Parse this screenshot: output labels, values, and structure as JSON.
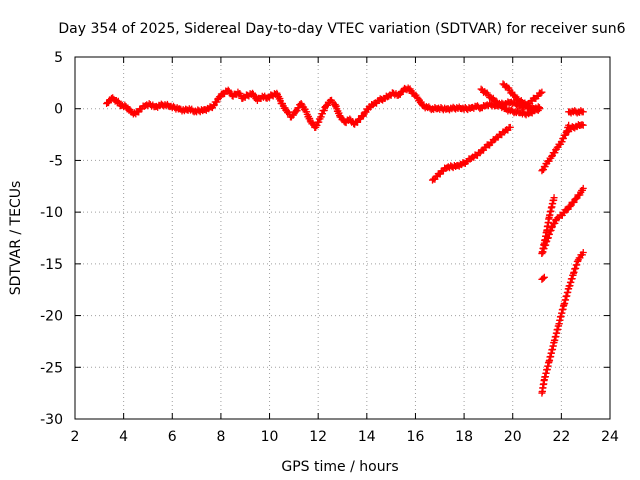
{
  "chart_data": {
    "type": "scatter",
    "title": "Day 354 of 2025, Sidereal Day-to-day VTEC variation (SDTVAR) for receiver sun6",
    "xlabel": "GPS time / hours",
    "ylabel": "SDTVAR / TECUs",
    "xlim": [
      2,
      24
    ],
    "ylim": [
      -30,
      5
    ],
    "x_ticks": [
      2,
      4,
      6,
      8,
      10,
      12,
      14,
      16,
      18,
      20,
      22,
      24
    ],
    "y_ticks": [
      5,
      0,
      -5,
      -10,
      -15,
      -20,
      -25,
      -30
    ],
    "grid": true,
    "marker": "plus",
    "color": "#ff0000",
    "series": [
      {
        "name": "main-track",
        "x": [
          3.3,
          3.5,
          3.7,
          3.9,
          4.1,
          4.3,
          4.5,
          4.7,
          4.9,
          5.1,
          5.3,
          5.5,
          5.7,
          5.9,
          6.1,
          6.3,
          6.5,
          6.7,
          6.9,
          7.1,
          7.3,
          7.5,
          7.7,
          7.9,
          8.1,
          8.3,
          8.5,
          8.7,
          8.9,
          9.1,
          9.3,
          9.5,
          9.7,
          9.9,
          10.1,
          10.3,
          10.5,
          10.7,
          10.9,
          11.1,
          11.3,
          11.5,
          11.7,
          11.9,
          12.1,
          12.3,
          12.5,
          12.7,
          12.9,
          13.1,
          13.3,
          13.5,
          13.7,
          13.9,
          14.1,
          14.3,
          14.5,
          14.7,
          14.9,
          15.1,
          15.3,
          15.5,
          15.7,
          15.9,
          16.1,
          16.3,
          16.5,
          16.7,
          16.9,
          17.1,
          17.3,
          17.5,
          17.7,
          17.9,
          18.1,
          18.3,
          18.5,
          18.7,
          18.9,
          19.1,
          19.3,
          19.5,
          19.7,
          19.9,
          20.1,
          20.3,
          20.5,
          20.7,
          20.9,
          21.1
        ],
        "y": [
          0.5,
          1.0,
          0.8,
          0.3,
          0.2,
          -0.3,
          -0.5,
          0.0,
          0.3,
          0.4,
          0.2,
          0.3,
          0.4,
          0.2,
          0.1,
          0.0,
          -0.2,
          0.0,
          -0.3,
          -0.2,
          -0.1,
          0.0,
          0.3,
          1.0,
          1.5,
          1.8,
          1.2,
          1.6,
          1.0,
          1.3,
          1.5,
          0.8,
          1.2,
          1.0,
          1.3,
          1.5,
          0.5,
          -0.2,
          -0.8,
          -0.2,
          0.5,
          -0.3,
          -1.3,
          -1.8,
          -0.8,
          0.2,
          0.8,
          0.4,
          -0.8,
          -1.3,
          -1.0,
          -1.5,
          -1.0,
          -0.5,
          0.2,
          0.5,
          0.8,
          1.0,
          1.2,
          1.5,
          1.3,
          1.8,
          2.0,
          1.5,
          1.0,
          0.3,
          0.1,
          0.0,
          0.0,
          0.0,
          0.0,
          0.0,
          0.1,
          0.0,
          0.0,
          0.1,
          0.2,
          0.1,
          0.3,
          0.4,
          0.3,
          0.4,
          0.5,
          0.6,
          0.5,
          0.3,
          0.2,
          0.1,
          0.0,
          0.1
        ]
      },
      {
        "name": "upper-branch-a",
        "x": [
          18.7,
          18.9,
          19.1,
          19.3,
          19.5,
          19.7,
          19.9,
          20.1,
          20.3,
          20.5,
          20.7,
          20.9,
          21.1
        ],
        "y": [
          1.9,
          1.5,
          1.1,
          0.7,
          0.3,
          0.0,
          -0.2,
          -0.3,
          -0.4,
          -0.5,
          -0.4,
          -0.2,
          0.0
        ]
      },
      {
        "name": "upper-branch-b",
        "x": [
          19.6,
          19.8,
          20.0,
          20.2,
          20.4,
          20.6,
          20.8,
          21.0,
          21.2
        ],
        "y": [
          2.4,
          2.0,
          1.4,
          0.9,
          0.6,
          0.4,
          0.8,
          1.2,
          1.6
        ]
      },
      {
        "name": "declining-track",
        "x": [
          16.7,
          16.9,
          17.1,
          17.3,
          17.5,
          17.7,
          17.9,
          18.1,
          18.3,
          18.5,
          18.7,
          18.9,
          19.1,
          19.3,
          19.5,
          19.7,
          19.9
        ],
        "y": [
          -6.9,
          -6.5,
          -6.0,
          -5.7,
          -5.6,
          -5.5,
          -5.4,
          -5.1,
          -4.8,
          -4.5,
          -4.1,
          -3.7,
          -3.3,
          -2.9,
          -2.5,
          -2.1,
          -1.8
        ]
      },
      {
        "name": "late-track-a",
        "x": [
          21.2,
          21.4,
          21.6,
          21.8,
          22.0,
          22.2,
          22.3
        ],
        "y": [
          -6.0,
          -5.3,
          -4.6,
          -3.9,
          -3.2,
          -2.3,
          -1.6
        ]
      },
      {
        "name": "late-track-a-top",
        "x": [
          22.3,
          22.5,
          22.7,
          22.9
        ],
        "y": [
          -0.3,
          -0.3,
          -0.3,
          -0.3
        ]
      },
      {
        "name": "late-track-b",
        "x": [
          22.2,
          22.4,
          22.6,
          22.8,
          22.9
        ],
        "y": [
          -2.3,
          -1.9,
          -1.7,
          -1.6,
          -1.6
        ]
      },
      {
        "name": "late-track-c",
        "x": [
          21.2,
          21.4,
          21.6,
          21.8,
          22.0,
          22.2,
          22.4,
          22.6,
          22.8,
          22.9
        ],
        "y": [
          -14.0,
          -12.8,
          -11.5,
          -10.7,
          -10.3,
          -9.8,
          -9.3,
          -8.7,
          -8.1,
          -7.7
        ]
      },
      {
        "name": "late-track-c-steep",
        "x": [
          21.2,
          21.3,
          21.4,
          21.5,
          21.6,
          21.7
        ],
        "y": [
          -14.0,
          -13.0,
          -11.8,
          -10.5,
          -9.5,
          -8.6
        ]
      },
      {
        "name": "late-track-d",
        "x": [
          21.2,
          21.3,
          21.5,
          21.7,
          21.9,
          22.1,
          22.3,
          22.5,
          22.7,
          22.9
        ],
        "y": [
          -27.5,
          -26.2,
          -24.4,
          -22.6,
          -20.8,
          -19.0,
          -17.4,
          -15.9,
          -14.6,
          -13.9
        ]
      },
      {
        "name": "late-isolated",
        "x": [
          21.2,
          21.3
        ],
        "y": [
          -16.5,
          -16.3
        ]
      }
    ]
  }
}
